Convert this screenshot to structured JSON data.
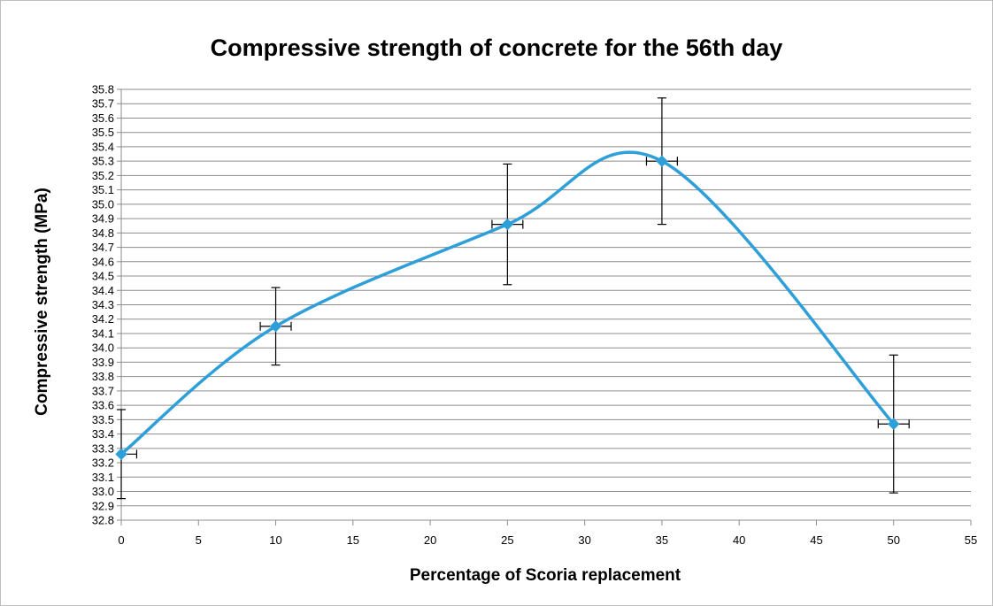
{
  "chart_data": {
    "type": "scatter",
    "title": "Compressive strength of concrete for the 56th day",
    "xlabel": "Percentage of Scoria replacement",
    "ylabel": "Compressive strength (MPa)",
    "xlim": [
      0,
      55
    ],
    "ylim": [
      32.8,
      35.8
    ],
    "x_ticks": [
      "0",
      "5",
      "10",
      "15",
      "20",
      "25",
      "30",
      "35",
      "40",
      "45",
      "50",
      "55"
    ],
    "y_ticks": [
      "32.8",
      "32.9",
      "33.0",
      "33.1",
      "33.2",
      "33.3",
      "33.4",
      "33.5",
      "33.6",
      "33.7",
      "33.8",
      "33.9",
      "34.0",
      "34.1",
      "34.2",
      "34.3",
      "34.4",
      "34.5",
      "34.6",
      "34.7",
      "34.8",
      "34.9",
      "35.0",
      "35.1",
      "35.2",
      "35.3",
      "35.4",
      "35.5",
      "35.6",
      "35.7",
      "35.8"
    ],
    "grid": true,
    "smooth_line": true,
    "series": [
      {
        "x": [
          0,
          10,
          25,
          35,
          50
        ],
        "y": [
          33.26,
          34.15,
          34.86,
          35.3,
          33.47
        ],
        "y_error": [
          0.31,
          0.27,
          0.42,
          0.44,
          0.48
        ],
        "x_error": [
          1,
          1,
          1,
          1,
          1
        ],
        "color": "#2e9fd8"
      }
    ]
  }
}
